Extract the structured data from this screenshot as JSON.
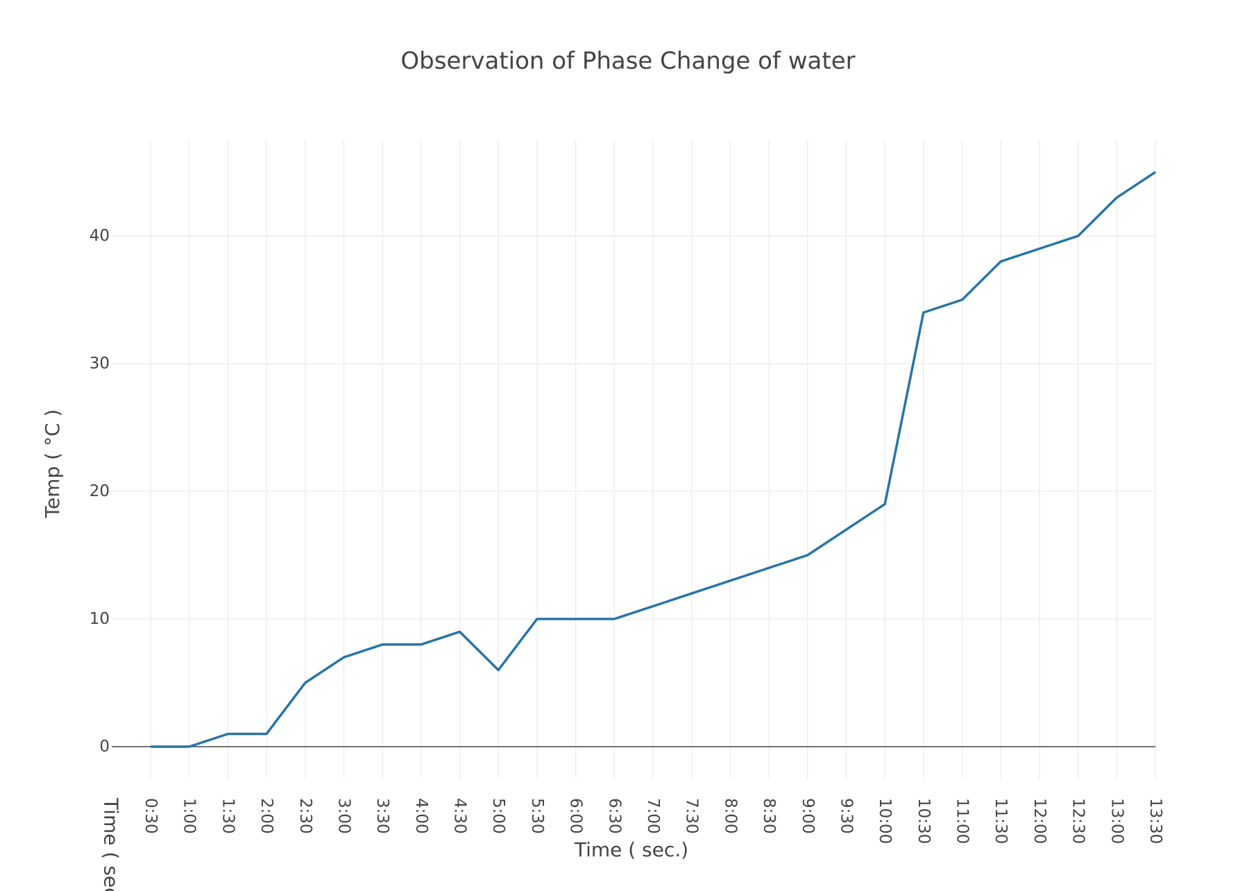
{
  "chart_data": {
    "type": "line",
    "title": "Observation of Phase Change of water",
    "xlabel": "Time ( sec.)",
    "ylabel": "Temp ( °C )",
    "x_category_title": "Time ( sec.)",
    "categories": [
      "0:30",
      "1:00",
      "1:30",
      "2:00",
      "2:30",
      "3:00",
      "3:30",
      "4:00",
      "4:30",
      "5:00",
      "5:30",
      "6:00",
      "6:30",
      "7:00",
      "7:30",
      "8:00",
      "8:30",
      "9:00",
      "9:30",
      "10:00",
      "10:30",
      "11:00",
      "11:30",
      "12:00",
      "12:30",
      "13:00",
      "13:30"
    ],
    "series": [
      {
        "values": [
          0,
          0,
          1,
          1,
          5,
          7,
          8,
          8,
          9,
          6,
          10,
          10,
          10,
          11,
          12,
          13,
          14,
          15,
          17,
          19,
          34,
          35,
          38,
          39,
          40,
          43,
          45
        ],
        "color": "#2874a6"
      }
    ],
    "ylim": [
      -2.5,
      47.5
    ],
    "yticks": [
      0,
      10,
      20,
      30,
      40
    ],
    "grid": true,
    "legend": "none"
  }
}
